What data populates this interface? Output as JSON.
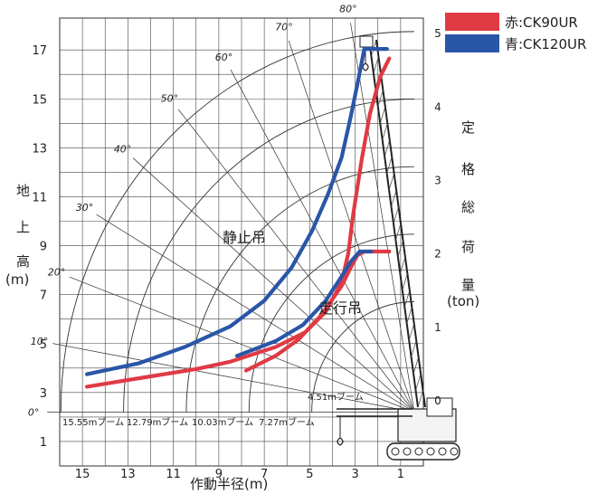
{
  "chart_data": {
    "type": "line",
    "legend": [
      {
        "label": "赤:CK90UR",
        "color": "#e03a45"
      },
      {
        "label": "青:CK120UR",
        "color": "#2a56a8"
      }
    ],
    "legend_placement": "top-right",
    "ylabel_chars": [
      "地",
      "上",
      "高"
    ],
    "ylabel_unit": "(m)",
    "y2label_chars": [
      "定",
      "格",
      "総",
      "荷",
      "量"
    ],
    "y2label_unit": "(ton)",
    "xlabel": "作動半径(m)",
    "x_ticks": [
      "15",
      "13",
      "11",
      "9",
      "7",
      "5",
      "3",
      "1"
    ],
    "y_ticks": [
      "17",
      "15",
      "13",
      "11",
      "9",
      "7",
      "5",
      "3",
      "1"
    ],
    "y2_ticks": [
      "5",
      "4",
      "3",
      "2",
      "1",
      "0"
    ],
    "angle_labels": [
      "80°",
      "70°",
      "60°",
      "50°",
      "40°",
      "30°",
      "20°",
      "10°",
      "0°"
    ],
    "boom_labels": [
      "15.55mブーム",
      "12.79mブーム",
      "10.03mブーム",
      "7.27mブーム",
      "4.51mブーム"
    ],
    "annotations": [
      "静止吊",
      "走行吊"
    ],
    "xlim": [
      16,
      0
    ],
    "ylim": [
      0,
      18.3
    ],
    "y2lim": [
      -0.9,
      5.2
    ],
    "series": [
      {
        "name": "赤:CK90UR",
        "mode": "静止吊",
        "unit": "ton",
        "x": [
          14.8,
          12,
          10,
          8.5,
          6.5,
          5.2,
          4.3,
          3.6,
          3.3,
          3.1,
          2.7,
          2.35,
          1.9,
          1.5
        ],
        "y": [
          0.18,
          0.32,
          0.42,
          0.52,
          0.72,
          0.92,
          1.2,
          1.6,
          2.0,
          2.5,
          3.3,
          3.9,
          4.4,
          4.65
        ]
      },
      {
        "name": "赤:CK90UR",
        "mode": "走行吊",
        "unit": "ton",
        "x": [
          7.8,
          6.5,
          5.5,
          4.5,
          3.6,
          3.2,
          2.9,
          2.6,
          1.5
        ],
        "y": [
          0.4,
          0.6,
          0.82,
          1.15,
          1.55,
          1.8,
          1.97,
          2.02,
          2.02
        ]
      },
      {
        "name": "青:CK120UR",
        "mode": "静止吊",
        "unit": "ton",
        "x": [
          14.8,
          12.5,
          10.5,
          8.5,
          7.0,
          5.8,
          4.9,
          4.2,
          3.6,
          3.2,
          2.9,
          2.6,
          2.1,
          1.6
        ],
        "y": [
          0.35,
          0.5,
          0.72,
          1.0,
          1.35,
          1.8,
          2.3,
          2.8,
          3.3,
          3.85,
          4.3,
          4.78,
          4.78,
          4.78
        ]
      },
      {
        "name": "青:CK120UR",
        "mode": "走行吊",
        "unit": "ton",
        "x": [
          8.2,
          6.5,
          5.3,
          4.3,
          3.6,
          3.2,
          2.8,
          2.3
        ],
        "y": [
          0.6,
          0.8,
          1.02,
          1.35,
          1.68,
          1.88,
          2.02,
          2.02
        ]
      }
    ]
  }
}
